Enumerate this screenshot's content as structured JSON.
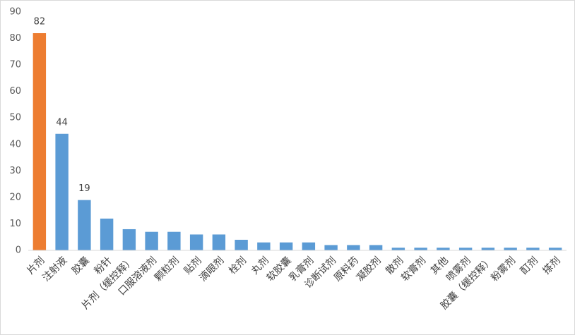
{
  "chart_data": {
    "type": "bar",
    "categories": [
      "片剂",
      "注射液",
      "胶囊",
      "粉针",
      "片剂（缓控释）",
      "口服溶液剂",
      "颗粒剂",
      "贴剂",
      "滴眼剂",
      "栓剂",
      "丸剂",
      "软胶囊",
      "乳膏剂",
      "诊断试剂",
      "原料药",
      "凝胶剂",
      "散剂",
      "软膏剂",
      "其他",
      "喷雾剂",
      "胶囊（缓控释）",
      "粉雾剂",
      "酊剂",
      "搽剂"
    ],
    "values": [
      82,
      44,
      19,
      12,
      8,
      7,
      7,
      6,
      6,
      4,
      3,
      3,
      3,
      2,
      2,
      2,
      1,
      1,
      1,
      1,
      1,
      1,
      1,
      1
    ],
    "value_labels": [
      "82",
      "44",
      "19",
      null,
      null,
      null,
      null,
      null,
      null,
      null,
      null,
      null,
      null,
      null,
      null,
      null,
      null,
      null,
      null,
      null,
      null,
      null,
      null,
      null
    ],
    "colors": [
      "#ed7d31",
      "#5b9bd5",
      "#5b9bd5",
      "#5b9bd5",
      "#5b9bd5",
      "#5b9bd5",
      "#5b9bd5",
      "#5b9bd5",
      "#5b9bd5",
      "#5b9bd5",
      "#5b9bd5",
      "#5b9bd5",
      "#5b9bd5",
      "#5b9bd5",
      "#5b9bd5",
      "#5b9bd5",
      "#5b9bd5",
      "#5b9bd5",
      "#5b9bd5",
      "#5b9bd5",
      "#5b9bd5",
      "#5b9bd5",
      "#5b9bd5",
      "#5b9bd5"
    ],
    "ylim": [
      0,
      90
    ],
    "yticks": [
      0,
      10,
      20,
      30,
      40,
      50,
      60,
      70,
      80,
      90
    ],
    "grid": false
  }
}
